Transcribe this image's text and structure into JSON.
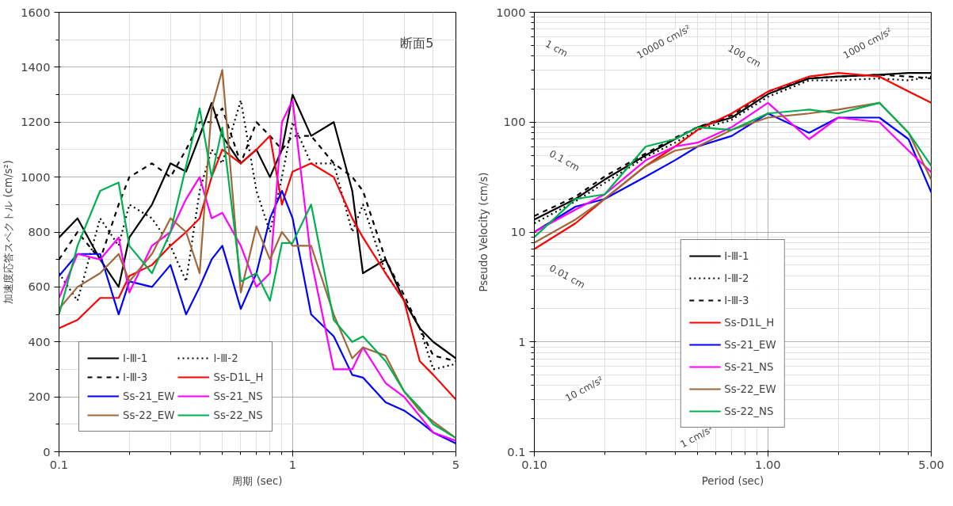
{
  "chart_data": [
    {
      "type": "line",
      "xlabel": "周期 (sec)",
      "ylabel": "加速度応答スペクトル (cm/s²)",
      "annotations": [
        "断面5"
      ],
      "log": "x",
      "grid": true,
      "legend": "bottom left",
      "xlim": [
        0.1,
        5
      ],
      "xticks": [
        0.1,
        1,
        5
      ],
      "ylim": [
        0,
        1600
      ],
      "yticks": [
        0,
        200,
        400,
        600,
        800,
        1000,
        1200,
        1400,
        1600
      ],
      "x": [
        0.1,
        0.12,
        0.15,
        0.18,
        0.2,
        0.25,
        0.3,
        0.35,
        0.4,
        0.45,
        0.5,
        0.6,
        0.7,
        0.8,
        0.9,
        1.0,
        1.2,
        1.5,
        1.8,
        2,
        2.5,
        3,
        3.5,
        4,
        5
      ],
      "series": [
        {
          "name": "Ⅰ-Ⅲ-1",
          "color": "#000000",
          "line_style": "solid",
          "values": [
            780,
            850,
            700,
            600,
            780,
            900,
            1050,
            1020,
            1150,
            1270,
            1150,
            1050,
            1100,
            1000,
            1100,
            1300,
            1150,
            1200,
            950,
            650,
            700,
            550,
            450,
            400,
            340
          ]
        },
        {
          "name": "Ⅰ-Ⅲ-2",
          "color": "#000000",
          "line_style": "dotted",
          "values": [
            650,
            550,
            850,
            750,
            900,
            850,
            750,
            620,
            950,
            1100,
            1050,
            1280,
            950,
            800,
            1000,
            1200,
            1050,
            1050,
            800,
            900,
            650,
            550,
            450,
            300,
            320
          ]
        },
        {
          "name": "Ⅰ-Ⅲ-3",
          "color": "#000000",
          "line_style": "dashed",
          "values": [
            700,
            800,
            700,
            900,
            1000,
            1050,
            1000,
            1100,
            1200,
            1200,
            1250,
            1050,
            1200,
            1150,
            1100,
            1150,
            1150,
            1050,
            1000,
            950,
            700,
            570,
            450,
            350,
            330
          ]
        },
        {
          "name": "Ss-D1L_H",
          "color": "#ff0000",
          "line_style": "solid",
          "values": [
            450,
            480,
            560,
            560,
            640,
            680,
            750,
            800,
            850,
            1000,
            1100,
            1050,
            1100,
            1150,
            900,
            1020,
            1050,
            1000,
            850,
            780,
            650,
            550,
            330,
            280,
            190
          ]
        },
        {
          "name": "Ss-21_EW",
          "color": "#0000ff",
          "line_style": "solid",
          "values": [
            640,
            720,
            720,
            500,
            620,
            600,
            680,
            500,
            600,
            700,
            750,
            520,
            650,
            850,
            950,
            850,
            500,
            420,
            280,
            270,
            180,
            150,
            110,
            70,
            30
          ]
        },
        {
          "name": "Ss-21_NS",
          "color": "#ff00ff",
          "line_style": "solid",
          "values": [
            560,
            720,
            700,
            780,
            580,
            750,
            800,
            920,
            1000,
            850,
            870,
            750,
            600,
            650,
            1200,
            1280,
            700,
            300,
            300,
            380,
            250,
            200,
            130,
            70,
            40
          ]
        },
        {
          "name": "Ss-22_EW",
          "color": "#a0683a",
          "line_style": "solid",
          "values": [
            520,
            600,
            650,
            720,
            620,
            720,
            850,
            800,
            650,
            1250,
            1390,
            580,
            820,
            700,
            800,
            750,
            750,
            500,
            340,
            380,
            350,
            220,
            150,
            110,
            50
          ]
        },
        {
          "name": "Ss-22_NS",
          "color": "#00b050",
          "line_style": "solid",
          "values": [
            500,
            750,
            950,
            980,
            750,
            650,
            800,
            1040,
            1250,
            1000,
            1180,
            620,
            650,
            550,
            760,
            760,
            900,
            480,
            400,
            420,
            330,
            220,
            160,
            100,
            50
          ]
        }
      ]
    },
    {
      "type": "line",
      "xlabel": "Period (sec)",
      "ylabel": "Pseudo Velocity (cm/s)",
      "log": "xy",
      "grid": true,
      "legend": "bottom",
      "xlim": [
        0.1,
        5
      ],
      "xticks": [
        {
          "value": 0.1,
          "label": "0.10"
        },
        {
          "value": 1,
          "label": "1.00"
        },
        {
          "value": 5,
          "label": "5.00"
        }
      ],
      "ylim": [
        0.1,
        1000
      ],
      "yticks": [
        0.1,
        1,
        10,
        100,
        1000
      ],
      "annotations": [
        "1 cm",
        "10000 cm/s²",
        "100 cm",
        "1000 cm/s²",
        "0.1 cm",
        "0.01 cm",
        "10 cm/s²",
        "1 cm/s²"
      ],
      "x": [
        0.1,
        0.15,
        0.2,
        0.3,
        0.4,
        0.5,
        0.7,
        1.0,
        1.5,
        2,
        3,
        4,
        5
      ],
      "series": [
        {
          "name": "Ⅰ-Ⅲ-1",
          "color": "#000000",
          "line_style": "solid",
          "values": [
            13,
            20,
            30,
            50,
            70,
            90,
            110,
            180,
            250,
            260,
            270,
            280,
            280
          ]
        },
        {
          "name": "Ⅰ-Ⅲ-2",
          "color": "#000000",
          "line_style": "dotted",
          "values": [
            12,
            19,
            28,
            48,
            65,
            85,
            105,
            170,
            240,
            240,
            250,
            240,
            260
          ]
        },
        {
          "name": "Ⅰ-Ⅲ-3",
          "color": "#000000",
          "line_style": "dashed",
          "values": [
            14,
            21,
            32,
            52,
            72,
            90,
            115,
            190,
            250,
            260,
            270,
            260,
            250
          ]
        },
        {
          "name": "Ss-D1L_H",
          "color": "#ff0000",
          "line_style": "solid",
          "values": [
            7,
            12,
            20,
            40,
            60,
            85,
            120,
            190,
            260,
            280,
            260,
            190,
            150
          ]
        },
        {
          "name": "Ss-21_EW",
          "color": "#0000ff",
          "line_style": "solid",
          "values": [
            10,
            17,
            20,
            32,
            45,
            60,
            75,
            120,
            80,
            110,
            110,
            70,
            23
          ]
        },
        {
          "name": "Ss-21_NS",
          "color": "#ff00ff",
          "line_style": "solid",
          "values": [
            10,
            16,
            22,
            45,
            60,
            65,
            90,
            150,
            70,
            110,
            100,
            55,
            35
          ]
        },
        {
          "name": "Ss-22_EW",
          "color": "#a0683a",
          "line_style": "solid",
          "values": [
            8,
            13,
            20,
            40,
            55,
            60,
            85,
            110,
            120,
            130,
            150,
            80,
            30
          ]
        },
        {
          "name": "Ss-22_NS",
          "color": "#00b050",
          "line_style": "solid",
          "values": [
            9,
            20,
            22,
            60,
            70,
            90,
            85,
            120,
            130,
            120,
            150,
            80,
            40
          ]
        }
      ]
    }
  ]
}
